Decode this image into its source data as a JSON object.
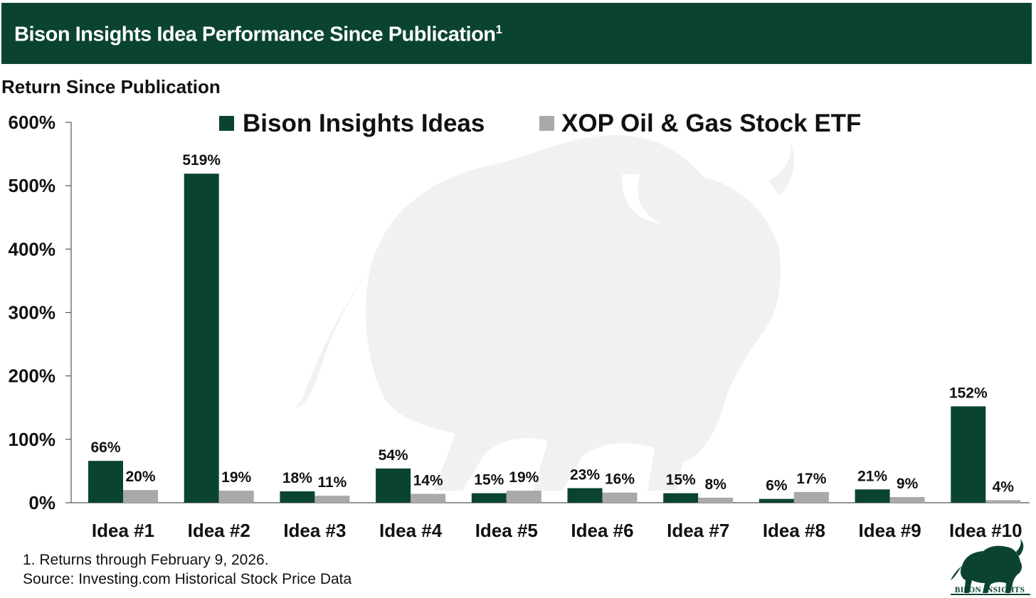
{
  "title": "Bison Insights Idea Performance Since Publication",
  "title_superscript": "1",
  "colors": {
    "banner": "#0b4332",
    "bison_ideas": "#0b4332",
    "xop_etf": "#a9a9a9",
    "watermark": "#f1f1f1"
  },
  "chart_data": {
    "type": "bar",
    "title": "Return Since Publication",
    "ylabel": "Return Since Publication",
    "xlabel": "",
    "ylim": [
      0,
      600
    ],
    "yticks": [
      0,
      100,
      200,
      300,
      400,
      500,
      600
    ],
    "ytick_labels": [
      "0%",
      "100%",
      "200%",
      "300%",
      "400%",
      "500%",
      "600%"
    ],
    "grid": false,
    "legend_position": "top-center",
    "categories": [
      "Idea #1",
      "Idea #2",
      "Idea #3",
      "Idea #4",
      "Idea #5",
      "Idea #6",
      "Idea #7",
      "Idea #8",
      "Idea #9",
      "Idea #10"
    ],
    "series": [
      {
        "name": "Bison Insights Ideas",
        "values": [
          66,
          519,
          18,
          54,
          15,
          23,
          15,
          6,
          21,
          152
        ],
        "labels": [
          "66%",
          "519%",
          "18%",
          "54%",
          "15%",
          "23%",
          "15%",
          "6%",
          "21%",
          "152%"
        ]
      },
      {
        "name": "XOP Oil & Gas Stock ETF",
        "values": [
          20,
          19,
          11,
          14,
          19,
          16,
          8,
          17,
          9,
          4
        ],
        "labels": [
          "20%",
          "19%",
          "11%",
          "14%",
          "19%",
          "16%",
          "8%",
          "17%",
          "9%",
          "4%"
        ]
      }
    ]
  },
  "footnotes": {
    "note": "1. Returns through February 9, 2026.",
    "source": "Source: Investing.com Historical Stock Price Data"
  },
  "logo": {
    "icon": "bison-logo-icon",
    "text": "BISON INSIGHTS"
  }
}
